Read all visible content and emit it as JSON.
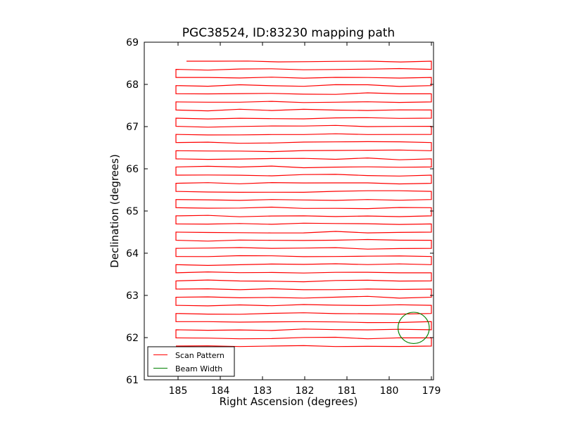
{
  "chart_data": {
    "type": "line",
    "title": "PGC38524, ID:83230 mapping path",
    "xlabel": "Right Ascension (degrees)",
    "ylabel": "Declination (degrees)",
    "xlim": [
      185.8,
      178.95
    ],
    "ylim": [
      61,
      69
    ],
    "xticks": [
      185,
      184,
      183,
      182,
      181,
      180,
      179
    ],
    "yticks": [
      61,
      62,
      63,
      64,
      65,
      66,
      67,
      68,
      69
    ],
    "xtick_labels": [
      "185",
      "184",
      "183",
      "182",
      "181",
      "180",
      "179"
    ],
    "ytick_labels": [
      "61",
      "62",
      "63",
      "64",
      "65",
      "66",
      "67",
      "68",
      "69"
    ],
    "grid": false,
    "legend_position": "lower-left",
    "series": [
      {
        "name": "Scan Pattern",
        "color": "#ff0000",
        "description": "boustrophedon raster scan in RA at stepped declinations",
        "ra_left": 185.05,
        "ra_right": 179.0,
        "dec_start": 68.55,
        "dec_end": 61.8,
        "n_rows": 36
      },
      {
        "name": "Beam Width",
        "color": "#008000",
        "center_ra": 179.42,
        "center_dec": 62.23,
        "radius_deg": 0.37
      }
    ],
    "legend": [
      "Scan Pattern",
      "Beam Width"
    ]
  }
}
